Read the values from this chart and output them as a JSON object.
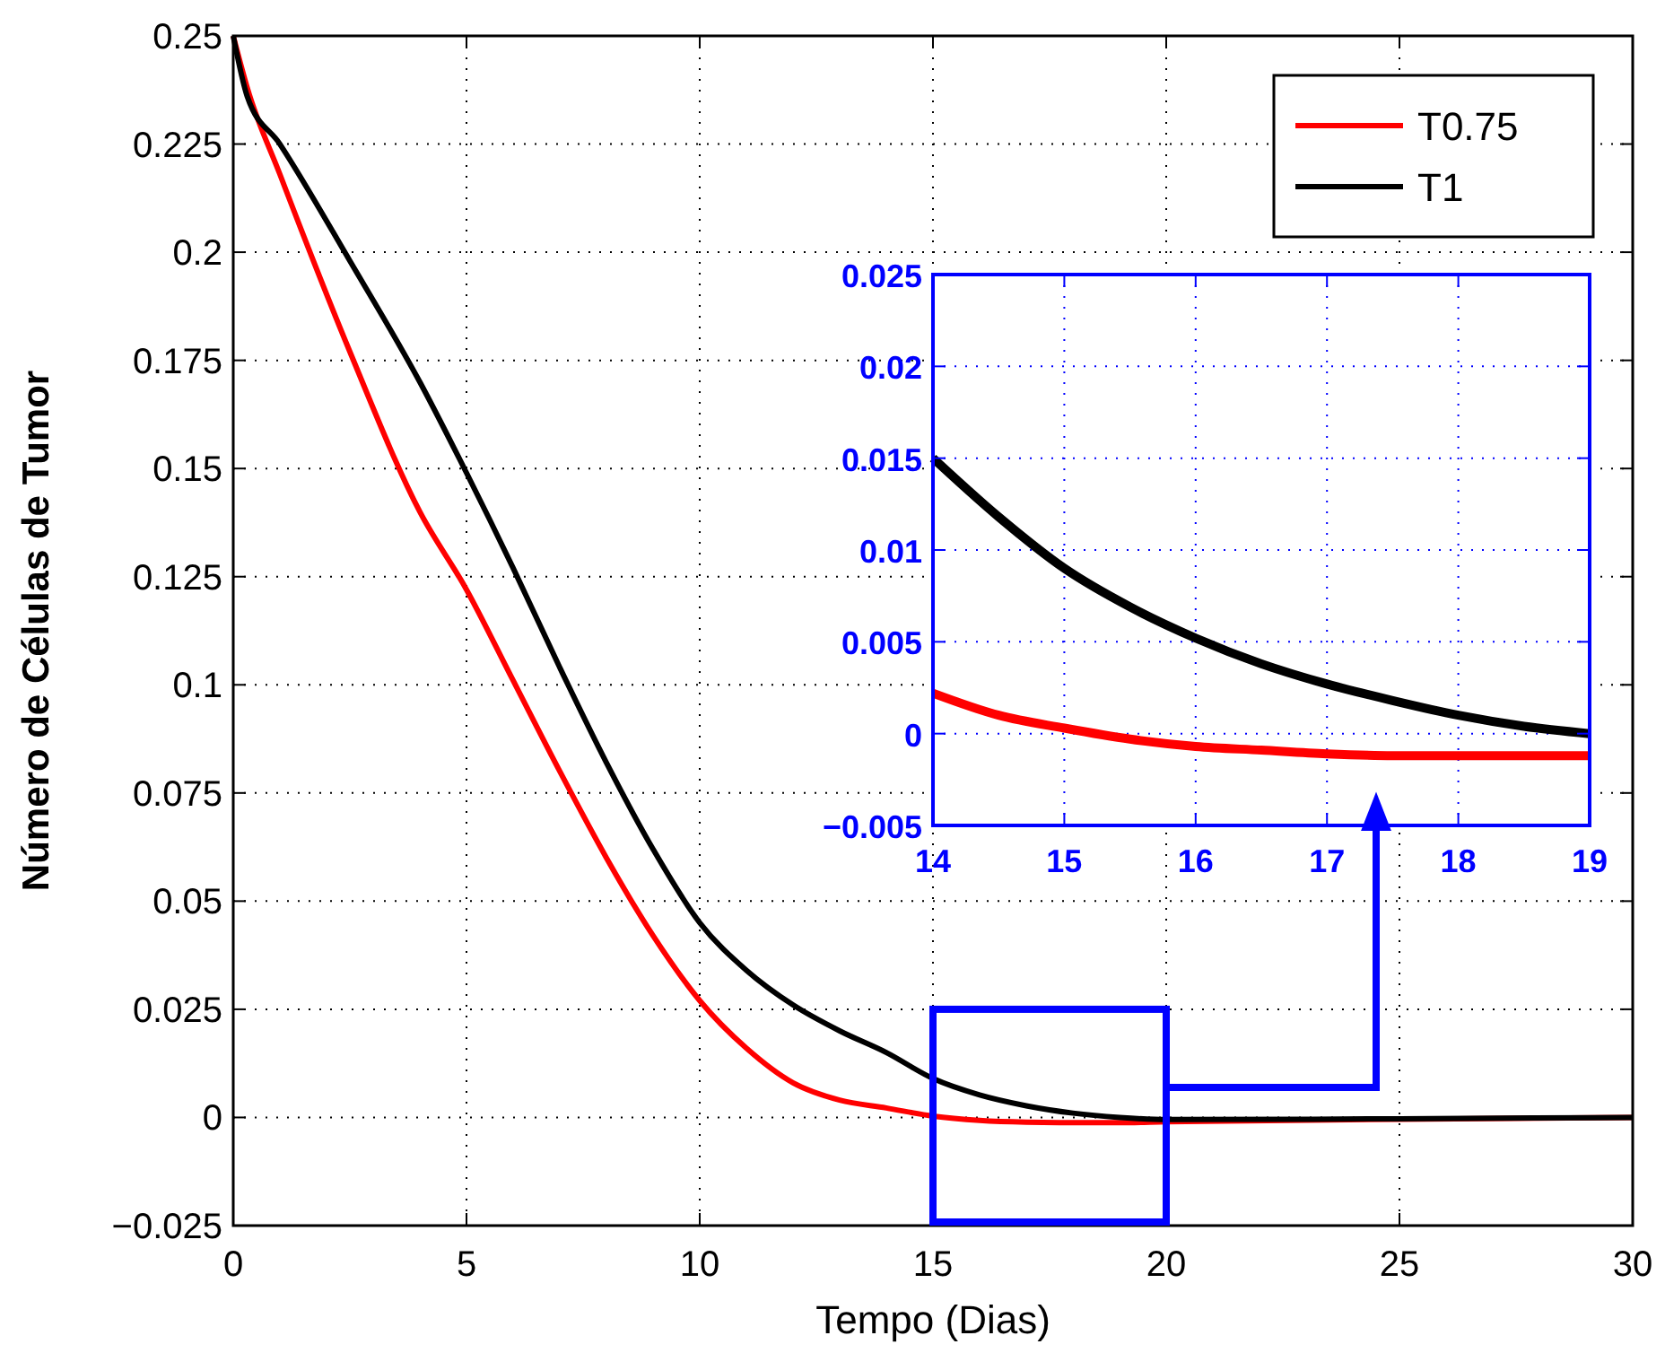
{
  "chart_data": [
    {
      "type": "line",
      "xlabel": "Tempo (Dias)",
      "ylabel": "Número de Células de Tumor",
      "xlim": [
        0,
        30
      ],
      "ylim": [
        -0.025,
        0.25
      ],
      "xticks": [
        0,
        5,
        10,
        15,
        20,
        25,
        30
      ],
      "yticks": [
        -0.025,
        0,
        0.025,
        0.05,
        0.075,
        0.1,
        0.125,
        0.15,
        0.175,
        0.2,
        0.225,
        0.25
      ],
      "grid": true,
      "legend": "top right",
      "line_style": "solid",
      "marker": "none",
      "x": [
        0,
        0.3,
        1,
        2.5,
        4,
        5,
        6,
        7,
        8,
        9,
        10,
        11,
        12,
        13,
        14,
        15,
        16,
        17,
        18,
        19,
        20,
        25,
        30
      ],
      "series": [
        {
          "name": "T0.75",
          "color": "#ff0000",
          "values": [
            0.25,
            0.238,
            0.218,
            0.177,
            0.14,
            0.122,
            0.101,
            0.08,
            0.06,
            0.042,
            0.027,
            0.016,
            0.008,
            0.004,
            0.0022,
            0.0003,
            -0.0007,
            -0.0011,
            -0.0012,
            -0.0012,
            -0.001,
            -0.0004,
            0
          ]
        },
        {
          "name": "T1",
          "color": "#000000",
          "values": [
            0.25,
            0.236,
            0.225,
            0.198,
            0.17,
            0.149,
            0.127,
            0.104,
            0.082,
            0.062,
            0.045,
            0.034,
            0.026,
            0.02,
            0.015,
            0.009,
            0.0052,
            0.0027,
            0.001,
            0,
            -0.0005,
            -0.0003,
            0
          ]
        }
      ]
    },
    {
      "type": "line",
      "xlim": [
        14,
        19
      ],
      "ylim": [
        -0.005,
        0.025
      ],
      "xticks": [
        14,
        15,
        16,
        17,
        18,
        19
      ],
      "yticks": [
        -0.005,
        0,
        0.005,
        0.01,
        0.015,
        0.02,
        0.025
      ],
      "grid": true,
      "line_style": "solid",
      "marker": "none",
      "x": [
        14,
        14.5,
        15,
        15.5,
        16,
        16.5,
        17,
        17.5,
        18,
        18.5,
        19
      ],
      "series": [
        {
          "color": "#ff0000",
          "values": [
            0.0022,
            0.001,
            0.0003,
            -0.0003,
            -0.0007,
            -0.0009,
            -0.0011,
            -0.0012,
            -0.0012,
            -0.0012,
            -0.0012
          ]
        },
        {
          "color": "#000000",
          "values": [
            0.015,
            0.0118,
            0.009,
            0.0069,
            0.0052,
            0.0038,
            0.0027,
            0.0018,
            0.001,
            0.0004,
            0
          ]
        }
      ]
    }
  ]
}
